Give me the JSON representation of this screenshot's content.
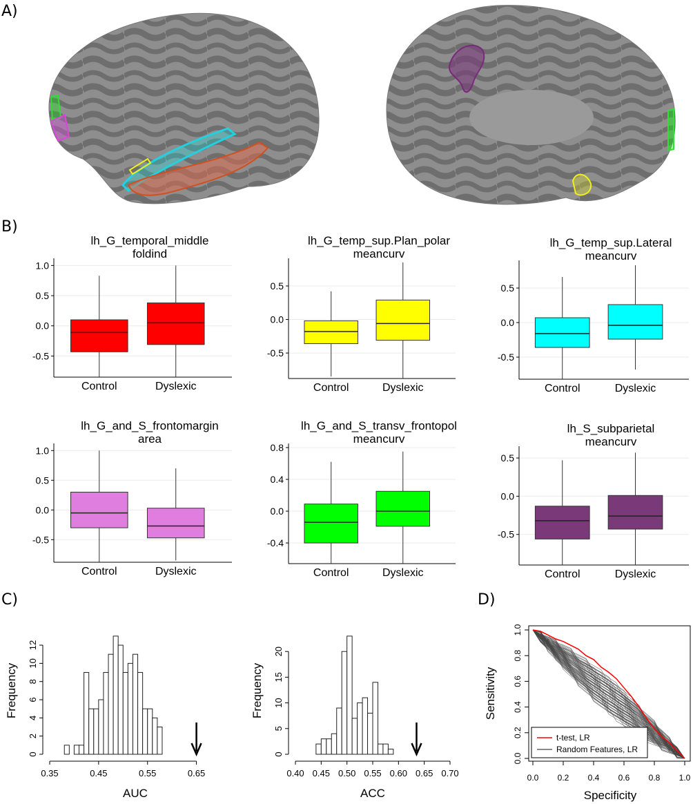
{
  "panel_labels": {
    "a": "A)",
    "b": "B)",
    "c": "C)",
    "d": "D)"
  },
  "colors": {
    "red": "#ff0000",
    "yellow": "#ffff00",
    "cyan": "#00ffff",
    "violet": "#e07ee0",
    "green": "#00ff00",
    "purple": "#7a3a7a"
  },
  "brains": {
    "lateral_regions": [
      "green-icon",
      "magenta-icon",
      "cyan-icon",
      "orange-icon",
      "yellow-icon"
    ],
    "medial_regions": [
      "purple-icon",
      "yellow-icon",
      "green-icon"
    ]
  },
  "chart_data": [
    {
      "type": "box",
      "title": "lh_G_temporal_middle",
      "subtitle": "foldind",
      "categories": [
        "Control",
        "Dyslexic"
      ],
      "color": "#ff0000",
      "yticks": [
        "1.0",
        "0.5",
        "0.0",
        "-0.5"
      ],
      "ylim": [
        -0.85,
        1.05
      ],
      "boxes": [
        {
          "min": -0.85,
          "q1": -0.43,
          "median": -0.11,
          "q3": 0.1,
          "max": 0.83
        },
        {
          "min": -0.85,
          "q1": -0.31,
          "median": 0.05,
          "q3": 0.38,
          "max": 1.0
        }
      ]
    },
    {
      "type": "box",
      "title": "lh_G_temp_sup.Plan_polar",
      "subtitle": "meancurv",
      "categories": [
        "Control",
        "Dyslexic"
      ],
      "color": "#ffff00",
      "yticks": [
        "0.5",
        "0.0",
        "-0.5"
      ],
      "ylim": [
        -0.88,
        0.85
      ],
      "boxes": [
        {
          "min": -0.85,
          "q1": -0.36,
          "median": -0.18,
          "q3": -0.02,
          "max": 0.42
        },
        {
          "min": -0.88,
          "q1": -0.31,
          "median": -0.06,
          "q3": 0.29,
          "max": 0.85
        }
      ]
    },
    {
      "type": "box",
      "title": "lh_G_temp_sup.Lateral",
      "subtitle": "meancurv",
      "categories": [
        "Control",
        "Dyslexic"
      ],
      "color": "#00ffff",
      "yticks": [
        "0.5",
        "0.0",
        "-0.5"
      ],
      "ylim": [
        -0.82,
        0.84
      ],
      "boxes": [
        {
          "min": -0.82,
          "q1": -0.36,
          "median": -0.16,
          "q3": 0.07,
          "max": 0.66
        },
        {
          "min": -0.68,
          "q1": -0.24,
          "median": -0.04,
          "q3": 0.26,
          "max": 0.83
        }
      ]
    },
    {
      "type": "box",
      "title": "lh_G_and_S_frontomargin",
      "subtitle": "area",
      "categories": [
        "Control",
        "Dyslexic"
      ],
      "color": "#e07ee0",
      "yticks": [
        "1.0",
        "0.5",
        "0.0",
        "-0.5"
      ],
      "ylim": [
        -0.88,
        1.05
      ],
      "boxes": [
        {
          "min": -0.88,
          "q1": -0.3,
          "median": -0.05,
          "q3": 0.3,
          "max": 1.0
        },
        {
          "min": -0.85,
          "q1": -0.47,
          "median": -0.27,
          "q3": 0.03,
          "max": 0.7
        }
      ]
    },
    {
      "type": "box",
      "title": "lh_G_and_S_transv_frontopol",
      "subtitle": "meancurv",
      "categories": [
        "Control",
        "Dyslexic"
      ],
      "color": "#00ff00",
      "yticks": [
        "0.8",
        "0.4",
        "0.0",
        "-0.4"
      ],
      "ylim": [
        -0.66,
        0.8
      ],
      "boxes": [
        {
          "min": -0.66,
          "q1": -0.4,
          "median": -0.14,
          "q3": 0.09,
          "max": 0.62
        },
        {
          "min": -0.66,
          "q1": -0.19,
          "median": 0.0,
          "q3": 0.25,
          "max": 0.75
        }
      ]
    },
    {
      "type": "box",
      "title": "lh_S_subparietal",
      "subtitle": "meancurv",
      "categories": [
        "Control",
        "Dyslexic"
      ],
      "color": "#7a3a7a",
      "yticks": [
        "0.5",
        "0.0",
        "-0.5"
      ],
      "ylim": [
        -0.9,
        0.6
      ],
      "boxes": [
        {
          "min": -0.9,
          "q1": -0.56,
          "median": -0.32,
          "q3": -0.13,
          "max": 0.47
        },
        {
          "min": -0.9,
          "q1": -0.43,
          "median": -0.26,
          "q3": 0.01,
          "max": 0.57
        }
      ]
    },
    {
      "type": "histogram",
      "xlabel": "AUC",
      "ylabel": "Frequency",
      "xlim": [
        0.35,
        0.7
      ],
      "xticks": [
        0.35,
        0.45,
        0.55,
        0.65
      ],
      "xtick_labels": [
        "0.35",
        "0.45",
        "0.55",
        "0.65"
      ],
      "ylim": [
        0,
        13
      ],
      "yticks": [
        0,
        2,
        4,
        6,
        8,
        10,
        12
      ],
      "ytick_labels": [
        "0",
        "2",
        "4",
        "6",
        "8",
        "10",
        "12"
      ],
      "bin_width": 0.01,
      "bin_starts": [
        0.38,
        0.39,
        0.4,
        0.41,
        0.42,
        0.43,
        0.44,
        0.45,
        0.46,
        0.47,
        0.48,
        0.49,
        0.5,
        0.51,
        0.52,
        0.53,
        0.54,
        0.55,
        0.56,
        0.57
      ],
      "counts": [
        1,
        0,
        1,
        1,
        9,
        5,
        5,
        6,
        9,
        11,
        13,
        12,
        9,
        10,
        11,
        9,
        5,
        5,
        4,
        3
      ],
      "arrow_x": 0.65
    },
    {
      "type": "histogram",
      "xlabel": "ACC",
      "ylabel": "Frequency",
      "xlim": [
        0.4,
        0.7
      ],
      "xticks": [
        0.4,
        0.45,
        0.5,
        0.55,
        0.6,
        0.65,
        0.7
      ],
      "xtick_labels": [
        "0.40",
        "0.45",
        "0.50",
        "0.55",
        "0.60",
        "0.65",
        "0.70"
      ],
      "ylim": [
        0,
        23
      ],
      "yticks": [
        0,
        5,
        10,
        15,
        20
      ],
      "ytick_labels": [
        "0",
        "5",
        "10",
        "15",
        "20"
      ],
      "bin_width": 0.01,
      "bin_starts": [
        0.44,
        0.45,
        0.46,
        0.47,
        0.48,
        0.49,
        0.5,
        0.51,
        0.52,
        0.53,
        0.54,
        0.55,
        0.56,
        0.57,
        0.58
      ],
      "counts": [
        2,
        3,
        3,
        4,
        9,
        20,
        23,
        7,
        10,
        11,
        8,
        14,
        2,
        2,
        1
      ],
      "arrow_x": 0.635
    },
    {
      "type": "line",
      "xlabel": "Specificity",
      "ylabel": "Sensitivity",
      "xlim": [
        0,
        1
      ],
      "ylim": [
        0,
        1
      ],
      "xticks": [
        0,
        0.2,
        0.4,
        0.6,
        0.8,
        1.0
      ],
      "xtick_labels": [
        "0.0",
        "0.2",
        "0.4",
        "0.6",
        "0.8",
        "1.0"
      ],
      "yticks": [
        0,
        0.2,
        0.4,
        0.6,
        0.8,
        1.0
      ],
      "ytick_labels": [
        "0.0",
        "0.2",
        "0.4",
        "0.6",
        "0.8",
        "1.0"
      ],
      "legend": "bottom-left",
      "series": [
        {
          "name": "t-test, LR",
          "color": "#ff0000",
          "x": [
            0,
            0.05,
            0.1,
            0.15,
            0.2,
            0.25,
            0.3,
            0.35,
            0.4,
            0.45,
            0.5,
            0.55,
            0.6,
            0.65,
            0.7,
            0.75,
            0.8,
            0.85,
            0.9,
            0.95,
            1.0
          ],
          "y": [
            1.0,
            0.99,
            0.96,
            0.93,
            0.91,
            0.88,
            0.85,
            0.8,
            0.77,
            0.71,
            0.67,
            0.62,
            0.55,
            0.48,
            0.4,
            0.31,
            0.23,
            0.17,
            0.12,
            0.06,
            0.0
          ]
        },
        {
          "name": "Random Features, LR",
          "color": "#444444",
          "x": [
            0,
            0.1,
            0.2,
            0.3,
            0.4,
            0.5,
            0.6,
            0.7,
            0.8,
            0.9,
            1.0
          ],
          "y": [
            1.0,
            0.92,
            0.82,
            0.72,
            0.62,
            0.5,
            0.4,
            0.3,
            0.2,
            0.1,
            0.0
          ]
        }
      ]
    }
  ]
}
